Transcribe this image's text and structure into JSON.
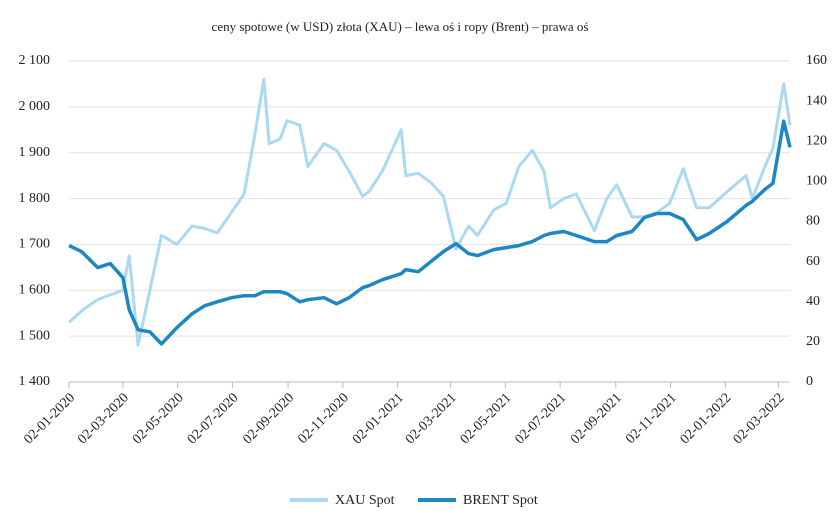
{
  "chart_data": {
    "type": "line",
    "title": "ceny spotowe (w USD) złota (XAU) – lewa oś i ropy (Brent) – prawa oś",
    "x": [
      "2020-01-02",
      "2020-01-16",
      "2020-02-03",
      "2020-02-17",
      "2020-03-02",
      "2020-03-09",
      "2020-03-19",
      "2020-04-01",
      "2020-04-14",
      "2020-05-01",
      "2020-05-18",
      "2020-06-01",
      "2020-06-15",
      "2020-07-01",
      "2020-07-15",
      "2020-07-27",
      "2020-08-06",
      "2020-08-12",
      "2020-08-24",
      "2020-09-01",
      "2020-09-15",
      "2020-09-24",
      "2020-10-12",
      "2020-10-26",
      "2020-11-09",
      "2020-11-24",
      "2020-12-01",
      "2020-12-16",
      "2021-01-06",
      "2021-01-11",
      "2021-01-25",
      "2021-02-08",
      "2021-02-22",
      "2021-03-08",
      "2021-03-22",
      "2021-04-01",
      "2021-04-19",
      "2021-05-03",
      "2021-05-17",
      "2021-06-01",
      "2021-06-14",
      "2021-06-21",
      "2021-07-06",
      "2021-07-20",
      "2021-08-09",
      "2021-08-23",
      "2021-09-03",
      "2021-09-20",
      "2021-10-04",
      "2021-10-18",
      "2021-11-01",
      "2021-11-16",
      "2021-12-01",
      "2021-12-15",
      "2022-01-04",
      "2022-01-25",
      "2022-02-01",
      "2022-02-15",
      "2022-02-24",
      "2022-03-08",
      "2022-03-15"
    ],
    "series": [
      {
        "name": "XAU Spot",
        "color": "#a9daf2",
        "axis": "y",
        "values": [
          1530,
          1555,
          1580,
          1590,
          1600,
          1675,
          1480,
          1600,
          1720,
          1700,
          1740,
          1735,
          1725,
          1770,
          1810,
          1940,
          2060,
          1920,
          1930,
          1970,
          1960,
          1870,
          1920,
          1905,
          1860,
          1805,
          1815,
          1860,
          1950,
          1850,
          1855,
          1835,
          1805,
          1690,
          1740,
          1720,
          1775,
          1790,
          1870,
          1905,
          1860,
          1780,
          1800,
          1810,
          1730,
          1800,
          1830,
          1760,
          1760,
          1770,
          1790,
          1865,
          1780,
          1780,
          1815,
          1850,
          1800,
          1870,
          1910,
          2050,
          1960
        ]
      },
      {
        "name": "BRENT Spot",
        "color": "#1d87c3",
        "axis": "y2",
        "values": [
          68,
          65,
          57,
          59,
          52,
          36,
          26,
          25,
          19,
          27,
          34,
          38,
          40,
          42,
          43,
          43,
          45,
          45,
          45,
          44,
          40,
          41,
          42,
          39,
          42,
          47,
          48,
          51,
          54,
          56,
          55,
          60,
          65,
          69,
          64,
          63,
          66,
          67,
          68,
          70,
          73,
          74,
          75,
          73,
          70,
          70,
          73,
          75,
          82,
          84,
          84,
          81,
          71,
          74,
          80,
          88,
          90,
          96,
          99,
          130,
          117
        ]
      }
    ],
    "xlim": [
      "2020-01-02",
      "2022-03-15"
    ],
    "xticks": [
      {
        "value": "2020-01-02",
        "label": "02-01-2020"
      },
      {
        "value": "2020-03-02",
        "label": "02-03-2020"
      },
      {
        "value": "2020-05-02",
        "label": "02-05-2020"
      },
      {
        "value": "2020-07-02",
        "label": "02-07-2020"
      },
      {
        "value": "2020-09-02",
        "label": "02-09-2020"
      },
      {
        "value": "2020-11-02",
        "label": "02-11-2020"
      },
      {
        "value": "2021-01-02",
        "label": "02-01-2021"
      },
      {
        "value": "2021-03-02",
        "label": "02-03-2021"
      },
      {
        "value": "2021-05-02",
        "label": "02-05-2021"
      },
      {
        "value": "2021-07-02",
        "label": "02-07-2021"
      },
      {
        "value": "2021-09-02",
        "label": "02-09-2021"
      },
      {
        "value": "2021-11-02",
        "label": "02-11-2021"
      },
      {
        "value": "2022-01-02",
        "label": "02-01-2022"
      },
      {
        "value": "2022-03-02",
        "label": "02-03-2022"
      }
    ],
    "ylim": [
      1400,
      2100
    ],
    "yticks": [
      {
        "value": 1400,
        "label": "1 400"
      },
      {
        "value": 1500,
        "label": "1 500"
      },
      {
        "value": 1600,
        "label": "1 600"
      },
      {
        "value": 1700,
        "label": "1 700"
      },
      {
        "value": 1800,
        "label": "1 800"
      },
      {
        "value": 1900,
        "label": "1 900"
      },
      {
        "value": 2000,
        "label": "2 000"
      },
      {
        "value": 2100,
        "label": "2 100"
      }
    ],
    "y2lim": [
      0,
      160
    ],
    "y2ticks": [
      0,
      20,
      40,
      60,
      80,
      100,
      120,
      140,
      160
    ],
    "grid": true,
    "legend": "bottom"
  }
}
